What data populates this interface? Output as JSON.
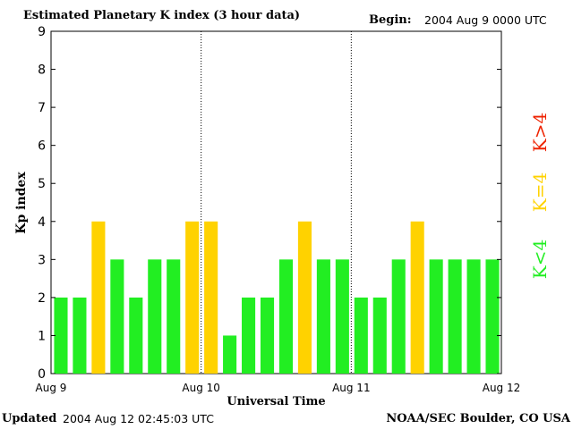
{
  "header": {
    "title": "Estimated Planetary K index (3 hour data)",
    "begin_label": "Begin:",
    "begin_value": "2004 Aug 9 0000 UTC"
  },
  "footer": {
    "updated_label": "Updated",
    "updated_value": "2004 Aug 12 02:45:03 UTC",
    "credit": "NOAA/SEC Boulder, CO USA"
  },
  "colors": {
    "low": "#22ee22",
    "storm_threshold": "#ffd200",
    "high": "#ee2200"
  },
  "chart_data": {
    "type": "bar",
    "title": "Estimated Planetary K index (3 hour data)",
    "xlabel": "Universal Time",
    "ylabel": "Kp index",
    "ylim": [
      0,
      9
    ],
    "yticks": [
      "0",
      "1",
      "2",
      "3",
      "4",
      "5",
      "6",
      "7",
      "8",
      "9"
    ],
    "xticks": [
      "Aug 9",
      "Aug 10",
      "Aug 11",
      "Aug 12"
    ],
    "values": [
      2,
      2,
      4,
      3,
      2,
      3,
      3,
      4,
      4,
      1,
      2,
      2,
      3,
      4,
      3,
      3,
      2,
      2,
      3,
      4,
      3,
      3,
      3,
      3
    ],
    "legend": [
      "K<4",
      "K=4",
      "K>4"
    ],
    "legend_position": "right",
    "grid": false
  }
}
